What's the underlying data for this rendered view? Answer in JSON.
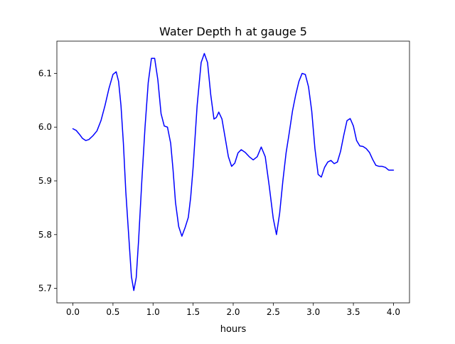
{
  "chart_data": {
    "type": "line",
    "title": "Water Depth h at gauge 5",
    "xlabel": "hours",
    "ylabel": "",
    "xlim": [
      -0.2,
      4.2
    ],
    "ylim": [
      5.673,
      6.16
    ],
    "xticks": [
      0.0,
      0.5,
      1.0,
      1.5,
      2.0,
      2.5,
      3.0,
      3.5,
      4.0
    ],
    "xtick_labels": [
      "0.0",
      "0.5",
      "1.0",
      "1.5",
      "2.0",
      "2.5",
      "3.0",
      "3.5",
      "4.0"
    ],
    "yticks": [
      5.7,
      5.8,
      5.9,
      6.0,
      6.1
    ],
    "ytick_labels": [
      "5.7",
      "5.8",
      "5.9",
      "6.0",
      "6.1"
    ],
    "grid": false,
    "series": [
      {
        "color": "#0000ff",
        "x": [
          0.0,
          0.04,
          0.08,
          0.12,
          0.16,
          0.2,
          0.25,
          0.3,
          0.35,
          0.4,
          0.45,
          0.5,
          0.54,
          0.57,
          0.6,
          0.63,
          0.66,
          0.7,
          0.73,
          0.76,
          0.79,
          0.82,
          0.86,
          0.9,
          0.94,
          0.98,
          1.02,
          1.06,
          1.1,
          1.14,
          1.18,
          1.22,
          1.25,
          1.28,
          1.32,
          1.36,
          1.4,
          1.44,
          1.47,
          1.5,
          1.55,
          1.6,
          1.64,
          1.68,
          1.72,
          1.76,
          1.79,
          1.82,
          1.86,
          1.9,
          1.94,
          1.98,
          2.02,
          2.06,
          2.1,
          2.15,
          2.2,
          2.25,
          2.3,
          2.35,
          2.4,
          2.45,
          2.5,
          2.54,
          2.58,
          2.62,
          2.66,
          2.7,
          2.74,
          2.78,
          2.82,
          2.86,
          2.9,
          2.94,
          2.98,
          3.02,
          3.06,
          3.1,
          3.14,
          3.18,
          3.22,
          3.26,
          3.3,
          3.34,
          3.38,
          3.42,
          3.46,
          3.5,
          3.54,
          3.58,
          3.62,
          3.66,
          3.7,
          3.74,
          3.78,
          3.82,
          3.86,
          3.9,
          3.94,
          3.98,
          4.0
        ],
        "y": [
          5.997,
          5.994,
          5.987,
          5.979,
          5.975,
          5.977,
          5.984,
          5.993,
          6.012,
          6.04,
          6.072,
          6.098,
          6.103,
          6.085,
          6.04,
          5.97,
          5.88,
          5.79,
          5.722,
          5.696,
          5.72,
          5.79,
          5.9,
          6.0,
          6.083,
          6.128,
          6.128,
          6.088,
          6.025,
          6.002,
          6.0,
          5.97,
          5.92,
          5.86,
          5.815,
          5.797,
          5.813,
          5.832,
          5.87,
          5.925,
          6.04,
          6.12,
          6.137,
          6.12,
          6.06,
          6.015,
          6.018,
          6.028,
          6.015,
          5.98,
          5.945,
          5.927,
          5.933,
          5.952,
          5.958,
          5.953,
          5.945,
          5.939,
          5.945,
          5.963,
          5.945,
          5.89,
          5.83,
          5.8,
          5.84,
          5.9,
          5.952,
          5.99,
          6.03,
          6.06,
          6.085,
          6.1,
          6.098,
          6.075,
          6.03,
          5.96,
          5.912,
          5.907,
          5.925,
          5.935,
          5.938,
          5.932,
          5.935,
          5.955,
          5.985,
          6.012,
          6.016,
          6.002,
          5.975,
          5.965,
          5.964,
          5.96,
          5.953,
          5.94,
          5.929,
          5.927,
          5.927,
          5.925,
          5.92,
          5.92,
          5.92
        ]
      }
    ]
  }
}
